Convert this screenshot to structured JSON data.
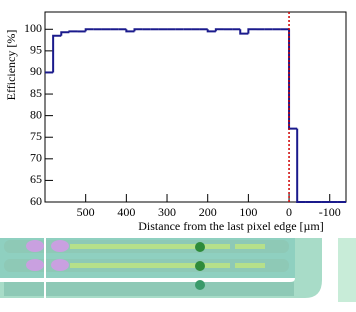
{
  "chart_data": {
    "type": "histogram",
    "xlabel": "Distance from the last pixel edge [µm]",
    "ylabel": "Efficiency [%]",
    "bins": [
      600,
      580,
      560,
      540,
      520,
      500,
      480,
      460,
      440,
      420,
      400,
      380,
      360,
      340,
      320,
      300,
      280,
      260,
      240,
      220,
      200,
      180,
      160,
      140,
      120,
      100,
      80,
      60,
      40,
      20,
      0,
      -20,
      -40,
      -60,
      -80,
      -100,
      -120,
      -140
    ],
    "values": [
      90,
      98.5,
      99.3,
      99.5,
      99.5,
      100,
      100,
      100,
      100,
      100,
      99.5,
      100,
      100,
      100,
      100,
      100,
      100,
      100,
      100,
      100,
      99.5,
      100,
      100,
      100,
      99,
      100,
      100,
      100,
      100,
      100,
      77,
      60,
      60,
      60,
      60,
      60,
      60
    ],
    "color": "#1a1a8c",
    "xlim": [
      600,
      -140
    ],
    "xticks": [
      500,
      400,
      300,
      200,
      100,
      0,
      -100
    ],
    "ylim": [
      60,
      104
    ],
    "yticks": [
      60,
      65,
      70,
      75,
      80,
      85,
      90,
      95,
      100
    ],
    "reference_line": {
      "x": 0,
      "color": "#cc0000"
    }
  }
}
